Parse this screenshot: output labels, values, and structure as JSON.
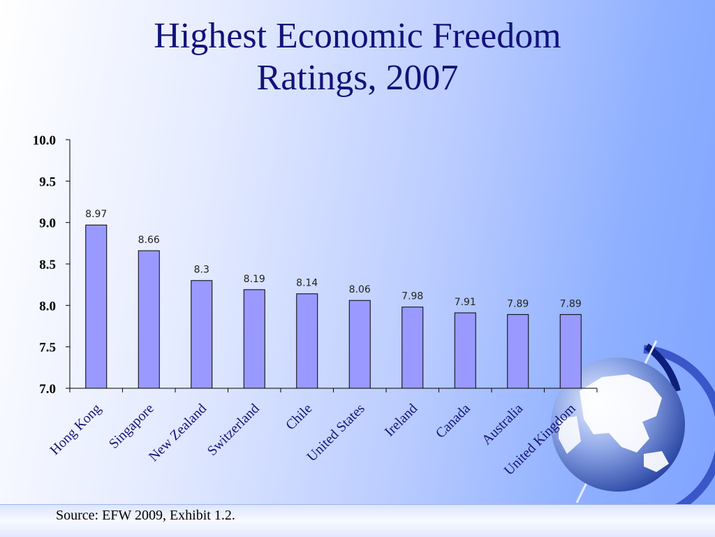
{
  "slide": {
    "title_line1": "Highest Economic Freedom",
    "title_line2": "Ratings, 2007",
    "source": "Source: EFW 2009, Exhibit 1.2."
  },
  "colors": {
    "bar_fill": "#9999ff",
    "bar_stroke": "#000000",
    "title": "#13137a"
  },
  "chart_data": {
    "type": "bar",
    "title": "Highest Economic Freedom Ratings, 2007",
    "xlabel": "",
    "ylabel": "",
    "categories": [
      "Hong Kong",
      "Singapore",
      "New Zealand",
      "Switzerland",
      "Chile",
      "United States",
      "Ireland",
      "Canada",
      "Australia",
      "United Kingdom"
    ],
    "values": [
      8.97,
      8.66,
      8.3,
      8.19,
      8.14,
      8.06,
      7.98,
      7.91,
      7.89,
      7.89
    ],
    "data_labels": [
      "8.97",
      "8.66",
      "8.3",
      "8.19",
      "8.14",
      "8.06",
      "7.98",
      "7.91",
      "7.89",
      "7.89"
    ],
    "yticks": [
      "7.0",
      "7.5",
      "8.0",
      "8.5",
      "9.0",
      "9.5",
      "10.0"
    ],
    "ylim": [
      7.0,
      10.0
    ],
    "grid": false,
    "legend": "none"
  }
}
